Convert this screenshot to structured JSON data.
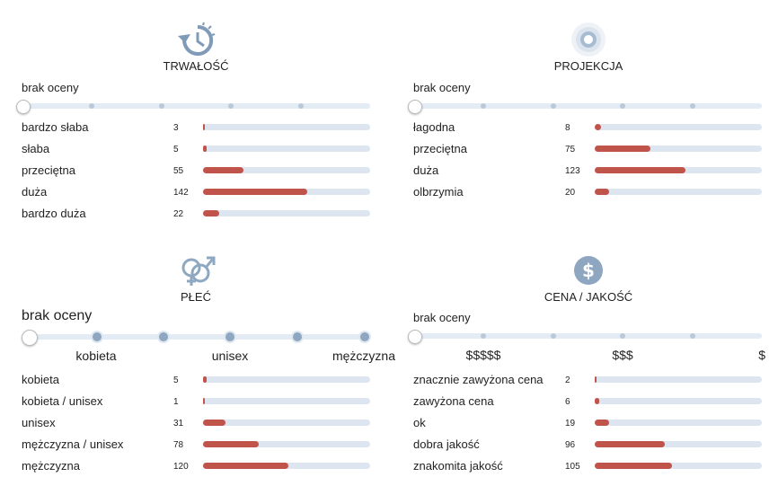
{
  "sections": [
    {
      "title": "TRWAŁOŚĆ",
      "slider_label": "brak oceny",
      "rows": [
        {
          "label": "bardzo słaba",
          "count": 3
        },
        {
          "label": "słaba",
          "count": 5
        },
        {
          "label": "przeciętna",
          "count": 55
        },
        {
          "label": "duża",
          "count": 142
        },
        {
          "label": "bardzo duża",
          "count": 22
        }
      ]
    },
    {
      "title": "PROJEKCJA",
      "slider_label": "brak oceny",
      "rows": [
        {
          "label": "łagodna",
          "count": 8
        },
        {
          "label": "przeciętna",
          "count": 75
        },
        {
          "label": "duża",
          "count": 123
        },
        {
          "label": "olbrzymia",
          "count": 20
        }
      ]
    },
    {
      "title": "PŁEĆ",
      "slider_label": "brak oceny",
      "scale_labels": [
        "kobieta",
        "unisex",
        "mężczyzna"
      ],
      "rows": [
        {
          "label": "kobieta",
          "count": 5
        },
        {
          "label": "kobieta / unisex",
          "count": 1
        },
        {
          "label": "unisex",
          "count": 31
        },
        {
          "label": "mężczyzna / unisex",
          "count": 78
        },
        {
          "label": "mężczyzna",
          "count": 120
        }
      ]
    },
    {
      "title": "CENA / JAKOŚĆ",
      "slider_label": "brak oceny",
      "scale_labels": [
        "$$$$$",
        "$$$",
        "$"
      ],
      "rows": [
        {
          "label": "znacznie zawyżona cena",
          "count": 2
        },
        {
          "label": "zawyżona cena",
          "count": 6
        },
        {
          "label": "ok",
          "count": 19
        },
        {
          "label": "dobra jakość",
          "count": 96
        },
        {
          "label": "znakomita jakość",
          "count": 105
        }
      ]
    }
  ]
}
